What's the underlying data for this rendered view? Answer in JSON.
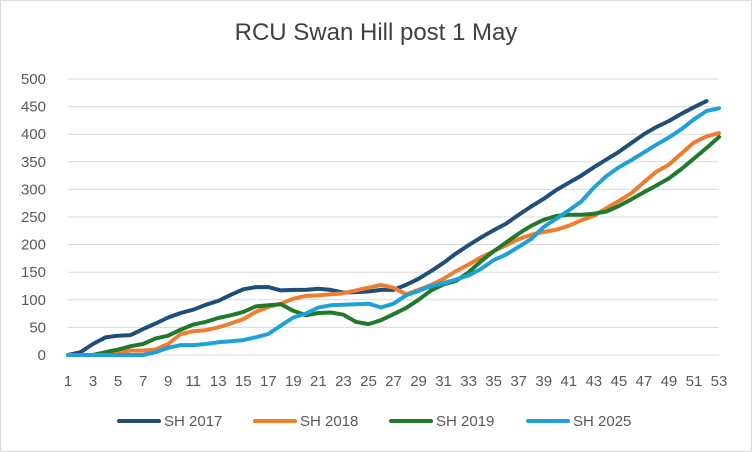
{
  "chart_data": {
    "type": "line",
    "title": "RCU Swan Hill post 1 May",
    "xlabel": "",
    "ylabel": "",
    "x": [
      1,
      2,
      3,
      4,
      5,
      6,
      7,
      8,
      9,
      10,
      11,
      12,
      13,
      14,
      15,
      16,
      17,
      18,
      19,
      20,
      21,
      22,
      23,
      24,
      25,
      26,
      27,
      28,
      29,
      30,
      31,
      32,
      33,
      34,
      35,
      36,
      37,
      38,
      39,
      40,
      41,
      42,
      43,
      44,
      45,
      46,
      47,
      48,
      49,
      50,
      51,
      52,
      53
    ],
    "x_tick_labels": [
      "1",
      "3",
      "5",
      "7",
      "9",
      "11",
      "13",
      "15",
      "17",
      "19",
      "21",
      "23",
      "25",
      "27",
      "29",
      "31",
      "33",
      "35",
      "37",
      "39",
      "41",
      "43",
      "45",
      "47",
      "49",
      "51",
      "53"
    ],
    "ylim": [
      0,
      500
    ],
    "y_ticks": [
      0,
      50,
      100,
      150,
      200,
      250,
      300,
      350,
      400,
      450,
      500
    ],
    "grid": true,
    "legend_position": "bottom",
    "series": [
      {
        "name": "SH 2017",
        "color": "#1f4e79",
        "values": [
          0,
          5,
          20,
          32,
          35,
          36,
          47,
          57,
          68,
          76,
          82,
          91,
          98,
          109,
          119,
          123,
          123,
          117,
          118,
          118,
          120,
          118,
          113,
          114,
          115,
          118,
          118,
          127,
          138,
          152,
          167,
          184,
          199,
          213,
          226,
          238,
          254,
          269,
          283,
          299,
          312,
          325,
          340,
          354,
          368,
          384,
          400,
          413,
          424,
          437,
          449,
          460,
          null
        ]
      },
      {
        "name": "SH 2018",
        "color": "#ed7d31",
        "values": [
          0,
          0,
          0,
          0,
          5,
          8,
          8,
          10,
          20,
          38,
          43,
          45,
          50,
          57,
          65,
          78,
          87,
          93,
          102,
          107,
          108,
          110,
          112,
          117,
          122,
          127,
          122,
          110,
          118,
          127,
          138,
          152,
          164,
          177,
          188,
          199,
          210,
          218,
          223,
          227,
          234,
          244,
          252,
          266,
          279,
          293,
          313,
          332,
          345,
          365,
          385,
          396,
          402
        ]
      },
      {
        "name": "SH 2019",
        "color": "#217a2b",
        "values": [
          0,
          0,
          0,
          5,
          10,
          16,
          20,
          30,
          35,
          46,
          55,
          60,
          67,
          72,
          78,
          88,
          90,
          92,
          80,
          72,
          76,
          77,
          73,
          60,
          56,
          63,
          74,
          85,
          100,
          117,
          128,
          134,
          150,
          170,
          188,
          204,
          220,
          234,
          245,
          252,
          254,
          254,
          256,
          260,
          270,
          282,
          295,
          307,
          320,
          337,
          356,
          375,
          395
        ]
      },
      {
        "name": "SH 2025",
        "color": "#1ea1d9",
        "values": [
          0,
          0,
          0,
          0,
          0,
          0,
          0,
          5,
          13,
          18,
          18,
          20,
          23,
          25,
          27,
          32,
          38,
          53,
          68,
          75,
          86,
          90,
          91,
          92,
          93,
          86,
          93,
          108,
          116,
          125,
          130,
          137,
          144,
          156,
          172,
          182,
          196,
          210,
          232,
          247,
          262,
          278,
          303,
          324,
          340,
          353,
          367,
          381,
          394,
          409,
          427,
          442,
          447
        ]
      }
    ]
  }
}
